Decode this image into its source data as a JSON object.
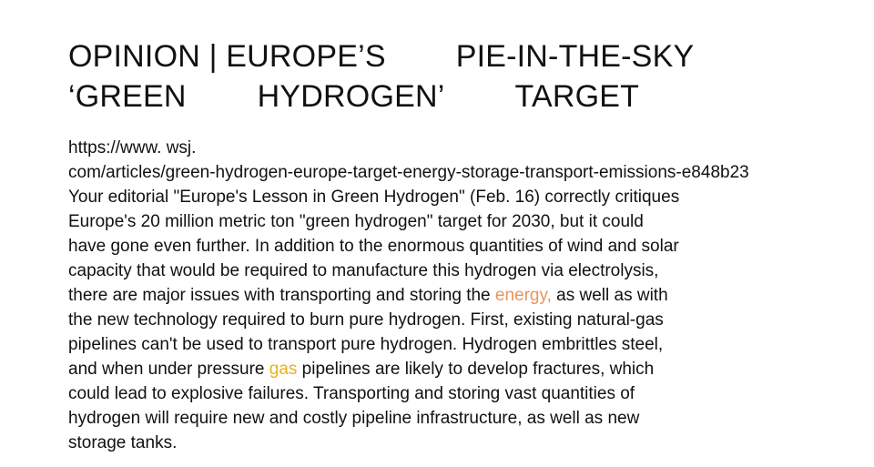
{
  "title": {
    "line1": [
      "OPINION | EUROPE’S",
      "PIE-IN-THE-SKY"
    ],
    "line2": [
      "‘GREEN",
      "HYDROGEN’",
      "TARGET"
    ]
  },
  "url": {
    "line1": "https://www. wsj.",
    "line2": "com/articles/green-hydrogen-europe-target-energy-storage-transport-emissions-e848b23"
  },
  "body": {
    "lines": [
      "Your editorial \"Europe's Lesson in Green Hydrogen\" (Feb. 16) correctly critiques",
      "Europe's 20 million metric ton \"green hydrogen\" target for 2030, but it could",
      "have gone even further. In addition to the enormous quantities of wind and solar",
      "capacity that would be required to manufacture this hydrogen via electrolysis,"
    ],
    "line5": {
      "before": "there are major issues with transporting and storing the ",
      "highlight": "energy,",
      "after": " as well as with"
    },
    "lines_b": [
      "the new technology required to burn pure hydrogen. First, existing natural-gas",
      "pipelines can't be used to transport pure hydrogen. Hydrogen embrittles steel,"
    ],
    "line8": {
      "before": "and when under pressure ",
      "highlight": "gas",
      "after": " pipelines are likely to develop fractures, which"
    },
    "lines_c": [
      "could lead to explosive failures. Transporting and storing vast quantities of",
      "hydrogen will require new and costly pipeline infrastructure, as well as new",
      "storage tanks."
    ]
  },
  "colors": {
    "text": "#111111",
    "highlight_energy": "#e8955a",
    "highlight_gas": "#e8b21c"
  }
}
